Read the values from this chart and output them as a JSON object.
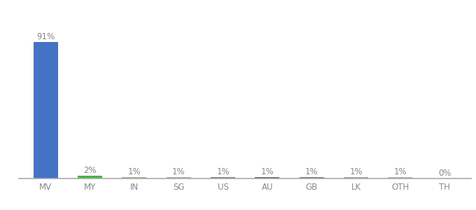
{
  "categories": [
    "MV",
    "MY",
    "IN",
    "SG",
    "US",
    "AU",
    "GB",
    "LK",
    "OTH",
    "TH"
  ],
  "values": [
    91,
    2,
    1,
    1,
    1,
    1,
    1,
    1,
    1,
    0
  ],
  "labels": [
    "91%",
    "2%",
    "1%",
    "1%",
    "1%",
    "1%",
    "1%",
    "1%",
    "1%",
    "0%"
  ],
  "bar_colors": [
    "#4472c4",
    "#4db04a",
    "#f0a030",
    "#5bc8f5",
    "#d2691e",
    "#3a7d44",
    "#e0437a",
    "#f08080",
    "#f4a460",
    "#d3d3d3"
  ],
  "background_color": "#ffffff",
  "label_fontsize": 8.5,
  "tick_fontsize": 8.5,
  "label_color": "#888888",
  "tick_color": "#888888",
  "spine_color": "#aaaaaa"
}
